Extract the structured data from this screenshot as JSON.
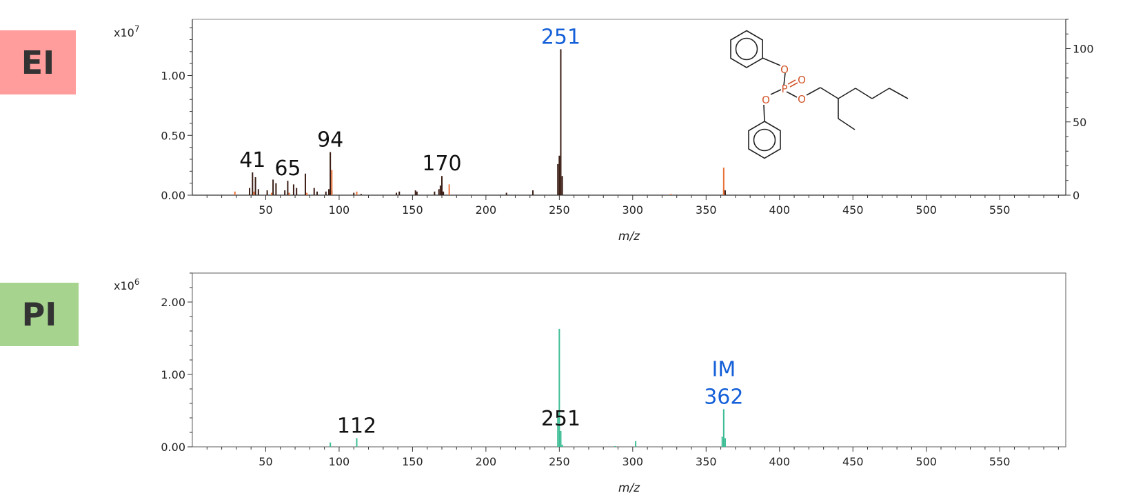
{
  "badges": [
    {
      "label": "EI",
      "color": "#ff9c9c"
    },
    {
      "label": "PI",
      "color": "#a6d48f"
    }
  ],
  "chart_data": [
    {
      "type": "bar",
      "panel": "EI",
      "xlabel": "m/z",
      "xlim": [
        0,
        595
      ],
      "xticks": [
        50,
        100,
        150,
        200,
        250,
        300,
        350,
        400,
        450,
        500,
        550
      ],
      "xtick_labels": [
        "50",
        "100",
        "150",
        "200",
        "250",
        "300",
        "350",
        "400",
        "450",
        "500",
        "550"
      ],
      "y_multiplier": "x10",
      "y_exponent": "7",
      "ylim": [
        0,
        1.47
      ],
      "yticks": [
        0.0,
        0.5,
        1.0
      ],
      "ytick_labels": [
        "0.00",
        "0.50",
        "1.00"
      ],
      "y2lim": [
        0,
        120
      ],
      "y2ticks": [
        0,
        50,
        100
      ],
      "y2tick_labels": [
        "0",
        "50",
        "100"
      ],
      "series": [
        {
          "color": "#3a1d14",
          "x": [
            39,
            41,
            43,
            45,
            51,
            55,
            57,
            63,
            65,
            69,
            71,
            77,
            83,
            85,
            91,
            93,
            94,
            95,
            110,
            115,
            139,
            141,
            152,
            153,
            165,
            168,
            169,
            170,
            171,
            214,
            232,
            249,
            250,
            251,
            252,
            362,
            363
          ],
          "y": [
            0.06,
            0.19,
            0.15,
            0.05,
            0.04,
            0.13,
            0.1,
            0.04,
            0.12,
            0.09,
            0.06,
            0.18,
            0.06,
            0.03,
            0.03,
            0.05,
            0.36,
            0.04,
            0.02,
            0.01,
            0.02,
            0.03,
            0.04,
            0.03,
            0.03,
            0.05,
            0.08,
            0.16,
            0.03,
            0.02,
            0.04,
            0.26,
            0.33,
            1.22,
            0.16,
            0.05,
            0.04
          ]
        },
        {
          "color": "#e8733a",
          "x": [
            29,
            42,
            54,
            66,
            78,
            95,
            112,
            175,
            326,
            362
          ],
          "y": [
            0.03,
            0.03,
            0.02,
            0.02,
            0.02,
            0.21,
            0.03,
            0.09,
            0.01,
            0.23
          ]
        }
      ],
      "annotations": [
        {
          "x": 41,
          "text": "41",
          "color": "#111111"
        },
        {
          "x": 65,
          "text": "65",
          "color": "#111111"
        },
        {
          "x": 94,
          "text": "94",
          "color": "#111111"
        },
        {
          "x": 170,
          "text": "170",
          "color": "#111111"
        },
        {
          "x": 251,
          "text": "251",
          "color": "#1560d8"
        }
      ],
      "structure_atom_labels": [
        "O",
        "O",
        "P",
        "O",
        "O"
      ]
    },
    {
      "type": "bar",
      "panel": "PI",
      "xlabel": "m/z",
      "xlim": [
        0,
        595
      ],
      "xticks": [
        50,
        100,
        150,
        200,
        250,
        300,
        350,
        400,
        450,
        500,
        550
      ],
      "xtick_labels": [
        "50",
        "100",
        "150",
        "200",
        "250",
        "300",
        "350",
        "400",
        "450",
        "500",
        "550"
      ],
      "y_multiplier": "x10",
      "y_exponent": "6",
      "ylim": [
        0,
        2.4
      ],
      "yticks": [
        0.0,
        1.0,
        2.0
      ],
      "ytick_labels": [
        "0.00",
        "1.00",
        "2.00"
      ],
      "series": [
        {
          "color": "#3dbd95",
          "x": [
            94,
            112,
            249,
            250,
            251,
            252,
            288,
            302,
            361,
            362,
            363
          ],
          "y": [
            0.06,
            0.12,
            0.46,
            1.63,
            0.22,
            0.03,
            0.01,
            0.08,
            0.14,
            0.52,
            0.12
          ]
        }
      ],
      "annotations": [
        {
          "x": 112,
          "text": "112",
          "color": "#111111"
        },
        {
          "x": 251,
          "text": "251",
          "color": "#111111"
        },
        {
          "x": 362,
          "text": "362",
          "color": "#1560d8"
        },
        {
          "x": 362,
          "text": "IM",
          "color": "#1560d8",
          "upper": true
        }
      ]
    }
  ]
}
